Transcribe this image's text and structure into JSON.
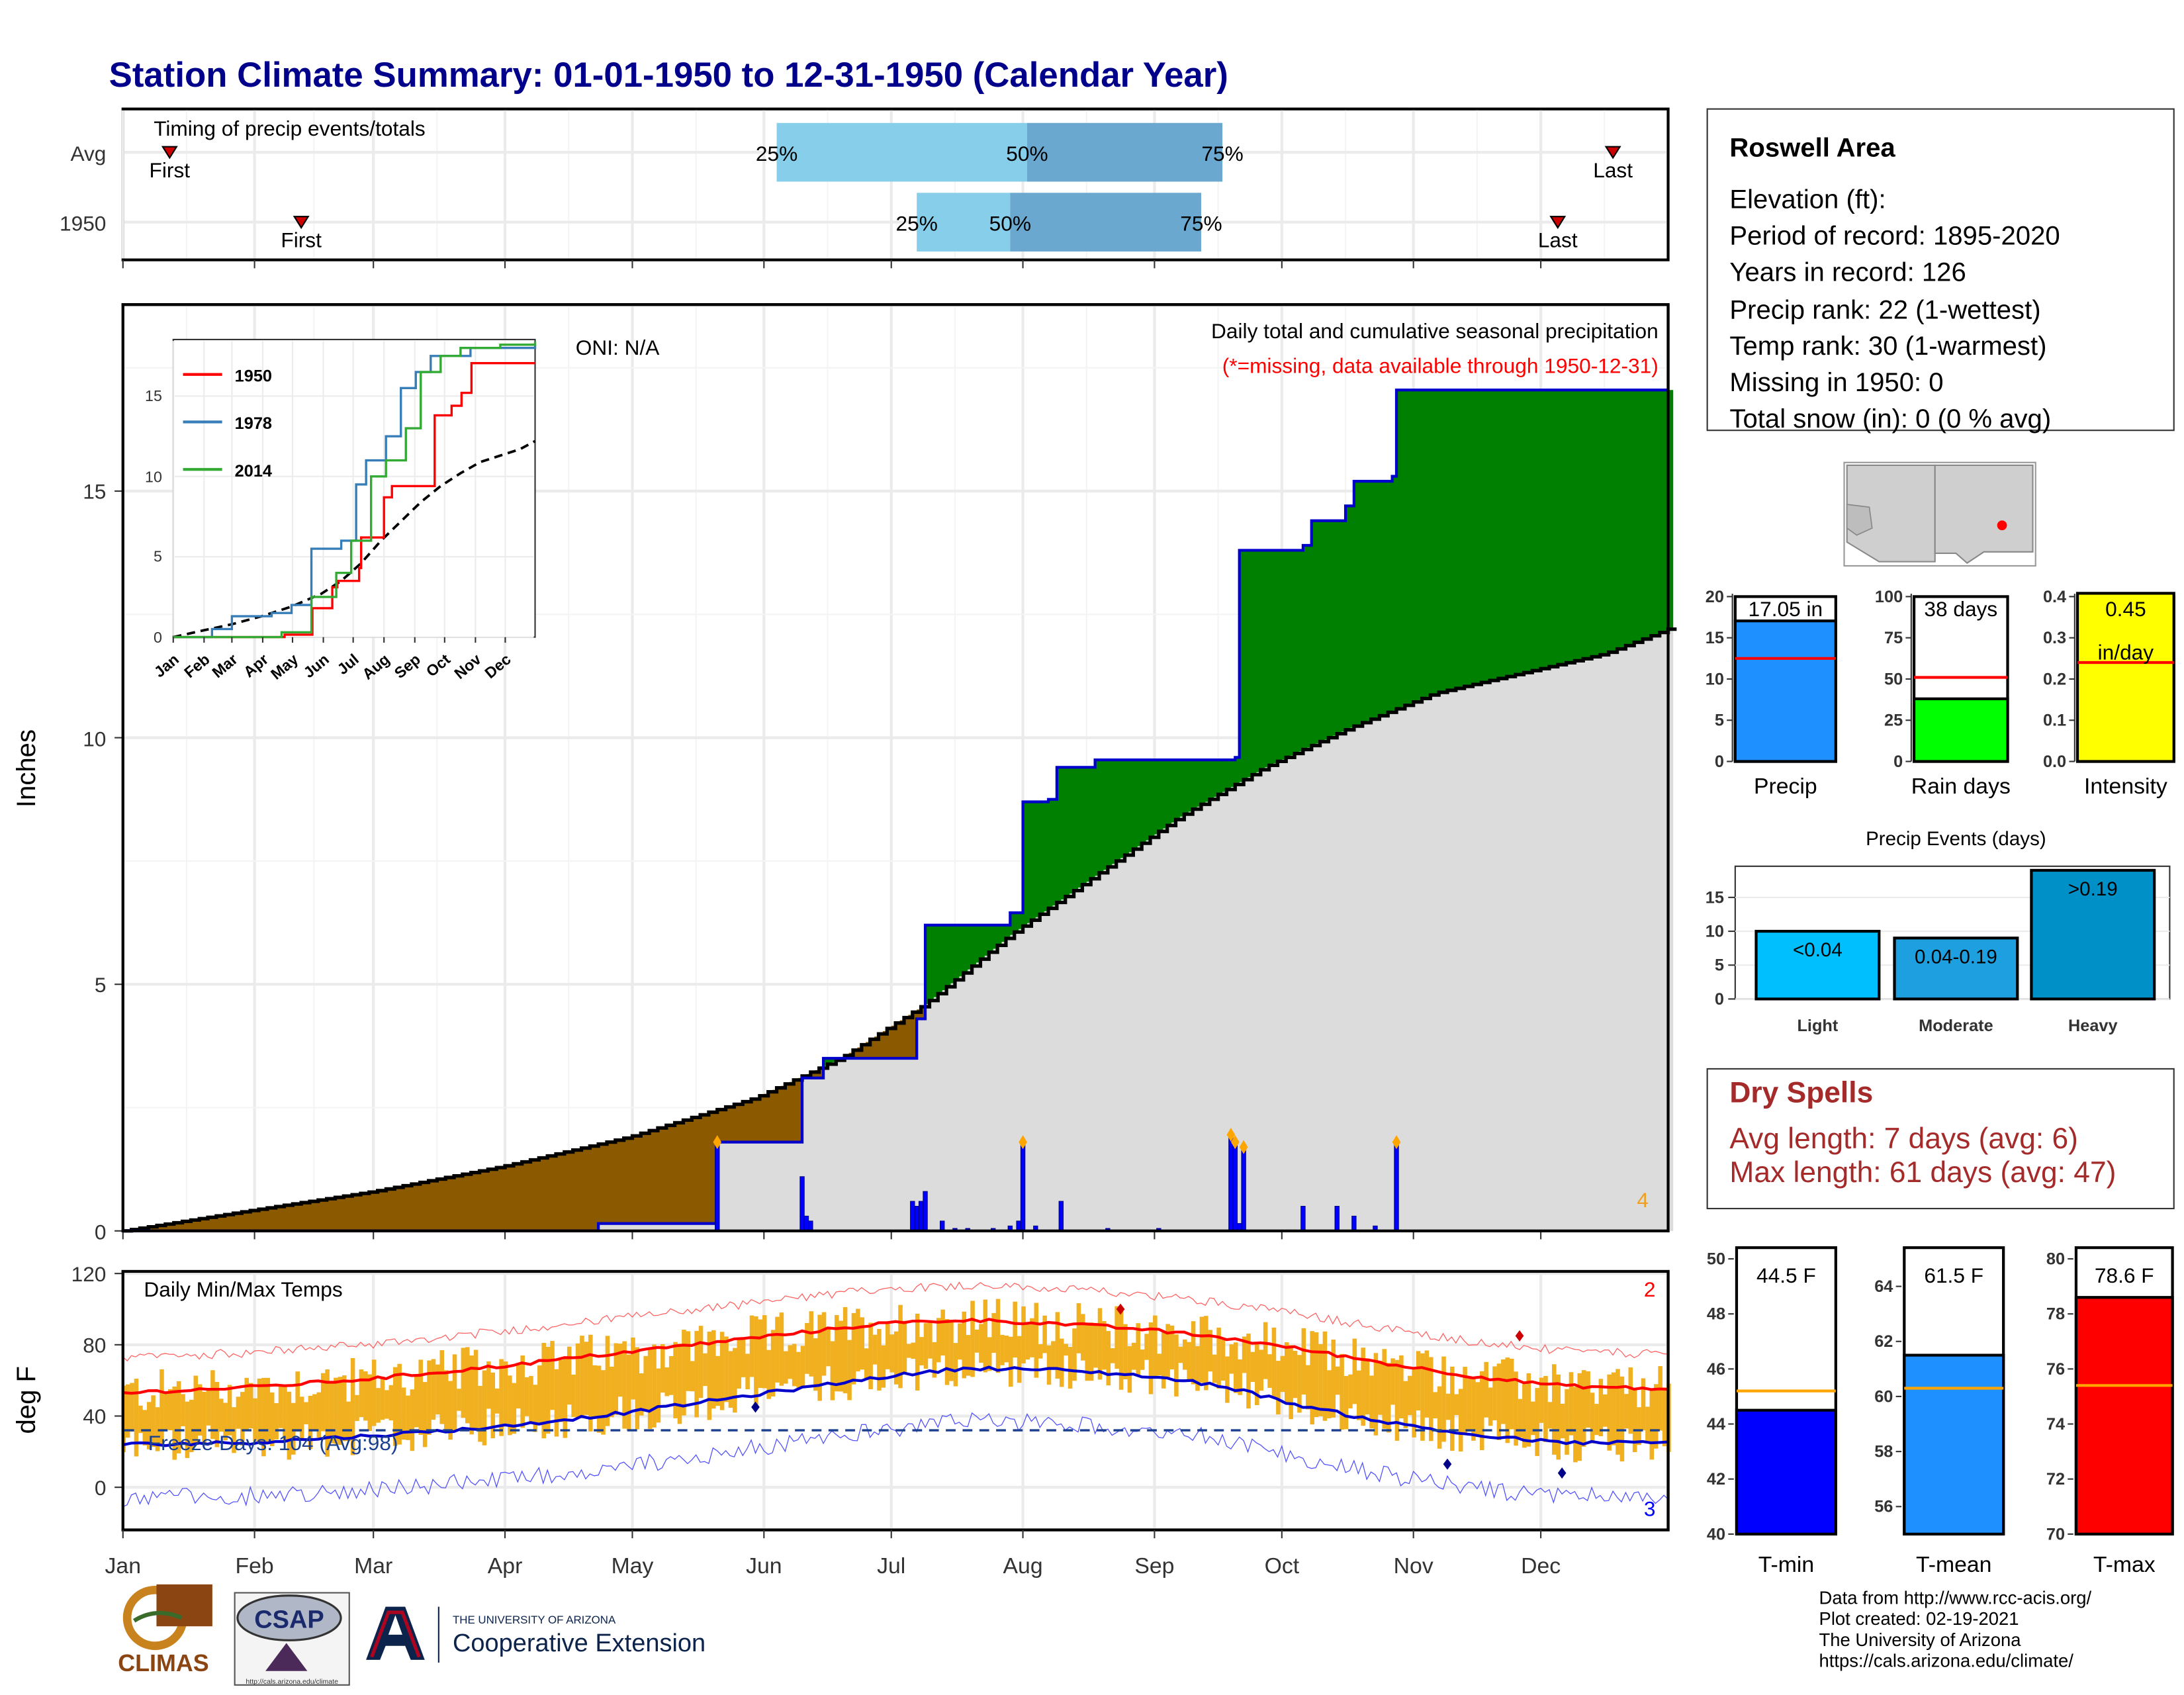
{
  "title": "Station Climate Summary: 01-01-1950 to 12-31-1950 (Calendar Year)",
  "colors": {
    "navy": "#00008b",
    "precip_green": "#008000",
    "deficit_brown": "#8b5a00",
    "avg_gray": "#dcdcdc",
    "bar_blue": "#0000ff",
    "orange": "#f0b020",
    "red": "#ff0000",
    "dry_red": "#a52a2a"
  },
  "timing": {
    "label": "Timing of precip events/totals",
    "rows": [
      {
        "name": "Avg",
        "first_label": "First",
        "last_label": "Last",
        "first_doy": 12,
        "last_doy": 352,
        "p25": 155,
        "p50": 214,
        "p75": 260,
        "l25": "25%",
        "l50": "50%",
        "l75": "75%"
      },
      {
        "name": "1950",
        "first_label": "First",
        "last_label": "Last",
        "first_doy": 43,
        "last_doy": 339,
        "p25": 188,
        "p50": 210,
        "p75": 255,
        "l25": "25%",
        "l50": "50%",
        "l75": "75%"
      }
    ]
  },
  "main": {
    "ylabel": "Inches",
    "yticks": [
      "0",
      "5",
      "10",
      "15"
    ],
    "header": "Daily total and cumulative seasonal precipitation",
    "missing_note": "(*=missing, data available through 1950-12-31)",
    "oni": "ONI: N/A",
    "count_label": "4"
  },
  "inset": {
    "yticks": [
      "0",
      "5",
      "10",
      "15"
    ],
    "months": [
      "Jan",
      "Feb",
      "Mar",
      "Apr",
      "May",
      "Jun",
      "Jul",
      "Aug",
      "Sep",
      "Oct",
      "Nov",
      "Dec"
    ],
    "legend": [
      "1950",
      "1978",
      "2014"
    ]
  },
  "temps": {
    "label": "Daily Min/Max Temps",
    "ylabel": "deg F",
    "yticks": [
      "120",
      "80",
      "40",
      "0"
    ],
    "freeze": "Freeze Days: 104 (Avg:98)",
    "count_hi": "2",
    "count_lo": "3",
    "months": [
      "Jan",
      "Feb",
      "Mar",
      "Apr",
      "May",
      "Jun",
      "Jul",
      "Aug",
      "Sep",
      "Oct",
      "Nov",
      "Dec"
    ]
  },
  "station": {
    "name": "Roswell Area",
    "lines": [
      "Elevation (ft):",
      "Period of record: 1895-2020",
      "Years in record: 126",
      "Precip rank: 22 (1-wettest)",
      "Temp rank: 30 (1-warmest)",
      "Missing in 1950: 0",
      "Total snow (in): 0 (0 % avg)"
    ]
  },
  "summary_bars": [
    {
      "label": "Precip",
      "value_text": "17.05 in",
      "value": 17.05,
      "avg": 12.5,
      "max": 20,
      "ticks": [
        "0",
        "5",
        "10",
        "15",
        "20"
      ],
      "color": "#1e90ff"
    },
    {
      "label": "Rain days",
      "value_text": "38 days",
      "value": 38,
      "avg": 51,
      "max": 100,
      "ticks": [
        "0",
        "25",
        "50",
        "75",
        "100"
      ],
      "color": "#00ff00"
    },
    {
      "label": "Intensity",
      "value_text": "0.45",
      "value_text2": "in/day",
      "value": 0.45,
      "avg": 0.24,
      "max": 0.4,
      "ticks": [
        "0.0",
        "0.1",
        "0.2",
        "0.3",
        "0.4"
      ],
      "color": "#ffff00"
    }
  ],
  "events": {
    "title": "Precip Events (days)",
    "yticks": [
      "0",
      "5",
      "10",
      "15"
    ],
    "bars": [
      {
        "label": "Light",
        "range": "<0.04",
        "value": 10,
        "color": "#00bfff"
      },
      {
        "label": "Moderate",
        "range": "0.04-0.19",
        "value": 9,
        "color": "#1ea0e0"
      },
      {
        "label": "Heavy",
        "range": ">0.19",
        "value": 19,
        "color": "#0090c8"
      }
    ]
  },
  "dry_spells": {
    "title": "Dry Spells",
    "avg": "Avg length: 7 days (avg: 6)",
    "max": "Max length: 61 days (avg: 47)"
  },
  "temp_bars": [
    {
      "label": "T-min",
      "value_text": "44.5 F",
      "value": 44.5,
      "avg": 45.2,
      "min": 40,
      "max": 50,
      "ticks": [
        "40",
        "42",
        "44",
        "46",
        "48",
        "50"
      ],
      "color": "#0000ff"
    },
    {
      "label": "T-mean",
      "value_text": "61.5 F",
      "value": 61.5,
      "avg": 60.3,
      "min": 55,
      "max": 65,
      "ticks": [
        "56",
        "58",
        "60",
        "62",
        "64"
      ],
      "color": "#1e90ff"
    },
    {
      "label": "T-max",
      "value_text": "78.6 F",
      "value": 78.6,
      "avg": 75.4,
      "min": 70,
      "max": 80,
      "ticks": [
        "70",
        "72",
        "74",
        "76",
        "78",
        "80"
      ],
      "color": "#ff0000"
    }
  ],
  "credits": [
    "Data from http://www.rcc-acis.org/",
    "Plot created: 02-19-2021",
    "The University of Arizona",
    "https://cals.arizona.edu/climate/"
  ],
  "logos": {
    "climas": "CLIMAS",
    "csap": "CSAP",
    "ua_small": "THE UNIVERSITY OF ARIZONA",
    "ua_big": "Cooperative Extension",
    "csap_url": "http://cals.arizona.edu/climate"
  },
  "chart_data": [
    {
      "type": "line",
      "title": "Daily total and cumulative seasonal precipitation",
      "ylabel": "Inches",
      "ylim": [
        0,
        18.8
      ],
      "x_unit": "day of year",
      "cumulative_1950": [
        [
          1,
          0
        ],
        [
          113,
          0.15
        ],
        [
          140,
          0.15
        ],
        [
          141,
          1.8
        ],
        [
          160,
          1.8
        ],
        [
          161,
          3.1
        ],
        [
          166,
          3.5
        ],
        [
          187,
          3.5
        ],
        [
          188,
          4.3
        ],
        [
          190,
          6.2
        ],
        [
          210,
          6.45
        ],
        [
          213,
          8.7
        ],
        [
          219,
          8.75
        ],
        [
          221,
          9.4
        ],
        [
          230,
          9.55
        ],
        [
          263,
          9.6
        ],
        [
          264,
          13.8
        ],
        [
          279,
          13.9
        ],
        [
          281,
          14.4
        ],
        [
          289,
          14.7
        ],
        [
          291,
          15.2
        ],
        [
          300,
          15.3
        ],
        [
          301,
          17.05
        ],
        [
          365,
          17.05
        ]
      ],
      "cumulative_avg": [
        [
          1,
          0
        ],
        [
          30,
          0.4
        ],
        [
          60,
          0.8
        ],
        [
          90,
          1.3
        ],
        [
          120,
          1.9
        ],
        [
          150,
          2.7
        ],
        [
          170,
          3.5
        ],
        [
          190,
          4.6
        ],
        [
          210,
          6.0
        ],
        [
          230,
          7.2
        ],
        [
          250,
          8.4
        ],
        [
          270,
          9.4
        ],
        [
          290,
          10.2
        ],
        [
          310,
          10.9
        ],
        [
          330,
          11.3
        ],
        [
          350,
          11.7
        ],
        [
          365,
          12.2
        ]
      ],
      "daily_bars": [
        [
          141,
          1.8
        ],
        [
          161,
          1.1
        ],
        [
          162,
          0.3
        ],
        [
          163,
          0.2
        ],
        [
          187,
          0.6
        ],
        [
          188,
          0.5
        ],
        [
          189,
          0.6
        ],
        [
          190,
          0.8
        ],
        [
          194,
          0.2
        ],
        [
          197,
          0.05
        ],
        [
          200,
          0.05
        ],
        [
          206,
          0.05
        ],
        [
          210,
          0.1
        ],
        [
          212,
          0.2
        ],
        [
          213,
          1.8
        ],
        [
          216,
          0.1
        ],
        [
          222,
          0.6
        ],
        [
          233,
          0.05
        ],
        [
          245,
          0.05
        ],
        [
          262,
          1.95
        ],
        [
          263,
          1.8
        ],
        [
          264,
          0.15
        ],
        [
          265,
          1.7
        ],
        [
          279,
          0.5
        ],
        [
          287,
          0.5
        ],
        [
          291,
          0.3
        ],
        [
          296,
          0.1
        ],
        [
          301,
          1.8
        ]
      ]
    },
    {
      "type": "line",
      "title": "",
      "ylabel": "",
      "ylim": [
        0,
        18.5
      ],
      "series": [
        {
          "name": "1950",
          "values": [
            [
              1,
              0
            ],
            [
              113,
              0.15
            ],
            [
              141,
              1.8
            ],
            [
              161,
              3.1
            ],
            [
              166,
              3.5
            ],
            [
              188,
              4.3
            ],
            [
              190,
              6.2
            ],
            [
              213,
              8.7
            ],
            [
              221,
              9.4
            ],
            [
              264,
              13.8
            ],
            [
              281,
              14.4
            ],
            [
              291,
              15.2
            ],
            [
              301,
              17.05
            ],
            [
              365,
              17.05
            ]
          ]
        },
        {
          "name": "1978",
          "values": [
            [
              1,
              0
            ],
            [
              40,
              0.5
            ],
            [
              60,
              1.3
            ],
            [
              100,
              1.5
            ],
            [
              120,
              2.0
            ],
            [
              140,
              5.5
            ],
            [
              170,
              6.0
            ],
            [
              185,
              9.5
            ],
            [
              195,
              11.0
            ],
            [
              215,
              12.5
            ],
            [
              230,
              15.5
            ],
            [
              245,
              16.5
            ],
            [
              260,
              17.5
            ],
            [
              300,
              18.0
            ],
            [
              365,
              18.2
            ]
          ]
        },
        {
          "name": "2014",
          "values": [
            [
              1,
              0
            ],
            [
              110,
              0.3
            ],
            [
              140,
              2.5
            ],
            [
              165,
              4.0
            ],
            [
              180,
              6.0
            ],
            [
              200,
              10.0
            ],
            [
              215,
              11.0
            ],
            [
              235,
              13.0
            ],
            [
              250,
              16.5
            ],
            [
              270,
              17.5
            ],
            [
              290,
              18.0
            ],
            [
              330,
              18.2
            ],
            [
              365,
              18.4
            ]
          ]
        }
      ]
    },
    {
      "type": "line",
      "title": "Daily Min/Max Temps",
      "ylabel": "deg F",
      "ylim": [
        -25,
        120
      ],
      "avg_max": [
        [
          1,
          53
        ],
        [
          30,
          56
        ],
        [
          60,
          61
        ],
        [
          90,
          68
        ],
        [
          120,
          76
        ],
        [
          150,
          84
        ],
        [
          180,
          92
        ],
        [
          200,
          94
        ],
        [
          220,
          92
        ],
        [
          240,
          89
        ],
        [
          260,
          84
        ],
        [
          280,
          77
        ],
        [
          300,
          69
        ],
        [
          320,
          62
        ],
        [
          340,
          57
        ],
        [
          365,
          55
        ]
      ],
      "avg_min": [
        [
          1,
          24
        ],
        [
          30,
          25
        ],
        [
          60,
          29
        ],
        [
          90,
          34
        ],
        [
          120,
          42
        ],
        [
          150,
          52
        ],
        [
          180,
          62
        ],
        [
          200,
          67
        ],
        [
          220,
          66
        ],
        [
          240,
          63
        ],
        [
          260,
          57
        ],
        [
          280,
          45
        ],
        [
          300,
          36
        ],
        [
          320,
          29
        ],
        [
          340,
          25
        ],
        [
          365,
          25
        ]
      ],
      "freeze_threshold": 32
    }
  ]
}
